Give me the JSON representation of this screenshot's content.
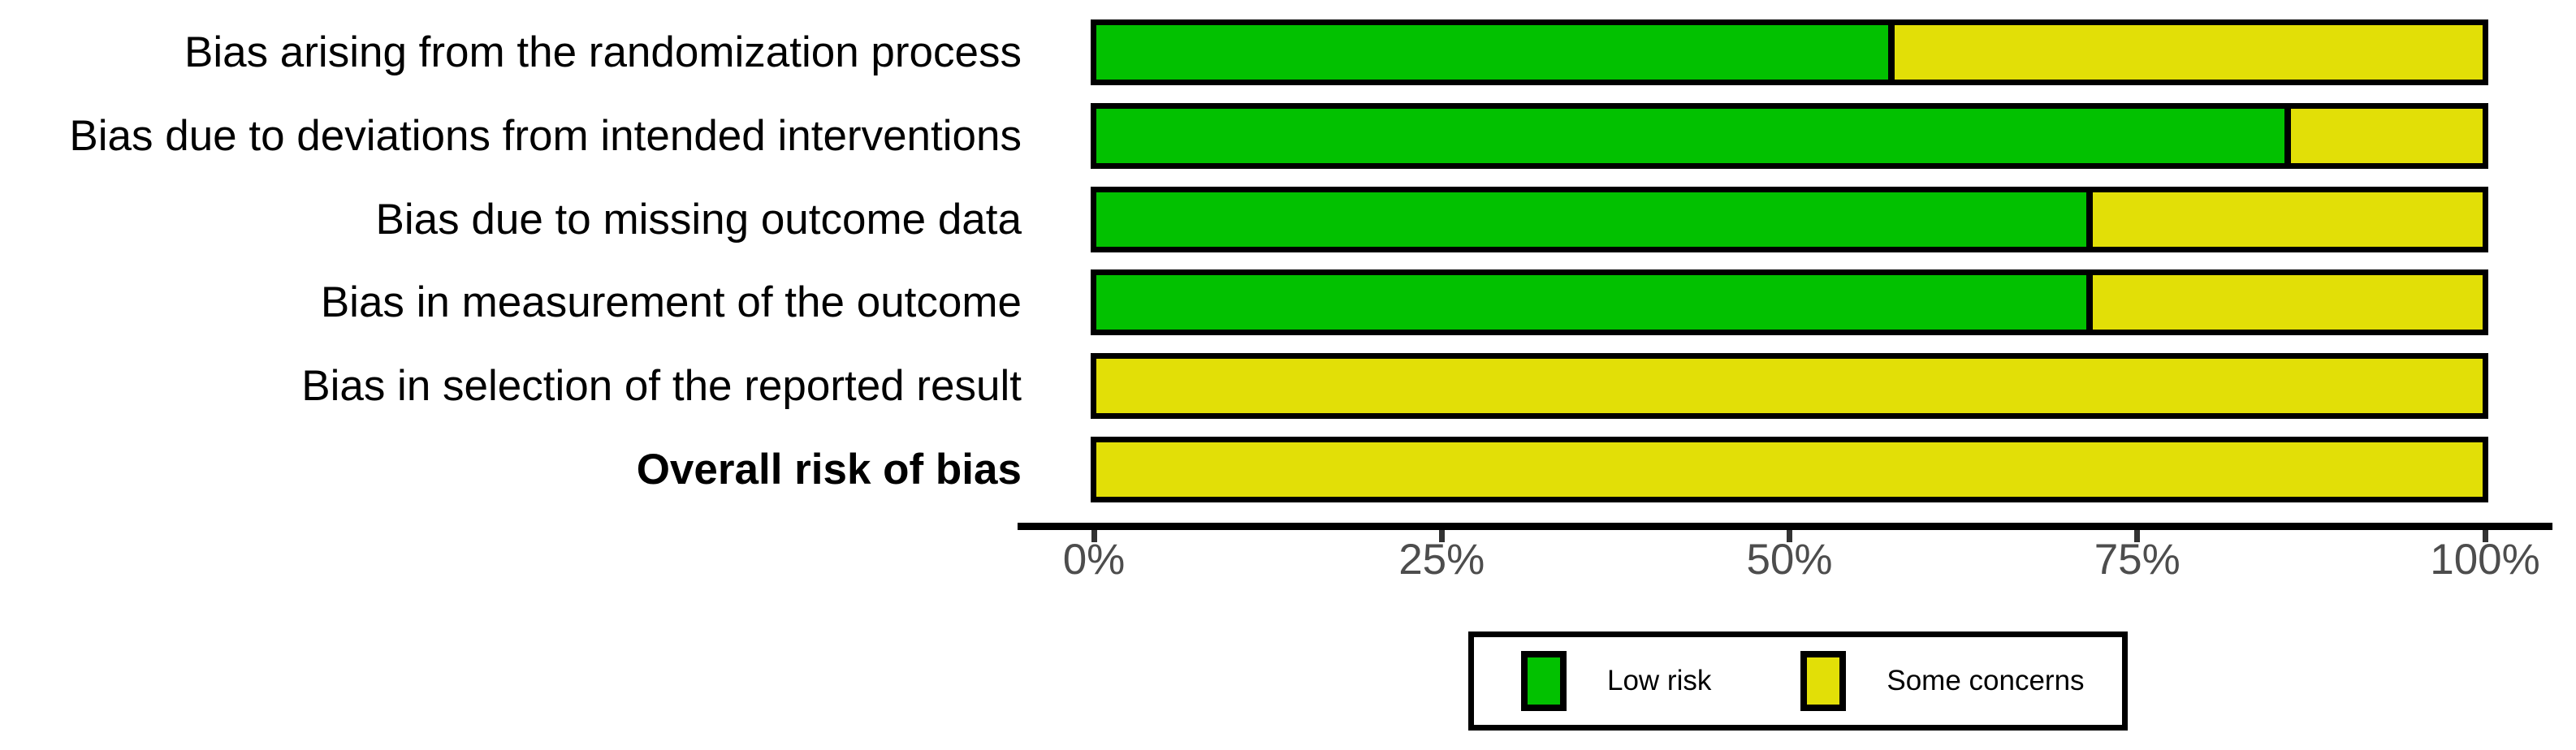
{
  "chart_data": {
    "type": "bar",
    "subtype": "stacked-horizontal-percentage",
    "title": "",
    "categories": [
      "Bias arising from the randomization process",
      "Bias due to deviations from intended interventions",
      "Bias due to missing outcome data",
      "Bias in measurement of the outcome",
      "Bias in selection of the reported result",
      "Overall risk of bias"
    ],
    "category_bold": [
      false,
      false,
      false,
      false,
      false,
      true
    ],
    "series": [
      {
        "name": "Low risk",
        "color": "#02C100",
        "values": [
          57.1,
          85.7,
          71.4,
          71.4,
          0,
          0
        ]
      },
      {
        "name": "Some concerns",
        "color": "#E2DF07",
        "values": [
          42.9,
          14.3,
          28.6,
          28.6,
          100,
          100
        ]
      }
    ],
    "x_axis": {
      "range": [
        0,
        100
      ],
      "unit": "%",
      "tick_labels": [
        "0%",
        "25%",
        "50%",
        "75%",
        "100%"
      ],
      "tick_values": [
        0,
        25,
        50,
        75,
        100
      ]
    },
    "legend_position": "bottom",
    "grid": false
  },
  "legend": {
    "items": [
      {
        "label": "Low risk",
        "color": "#02C100"
      },
      {
        "label": "Some concerns",
        "color": "#E2DF07"
      }
    ]
  },
  "colors": {
    "low_risk": "#02C100",
    "some_concerns": "#E2DF07",
    "bar_outline": "#000000",
    "axis_line": "#000000",
    "axis_text": "#4D4D4D"
  }
}
